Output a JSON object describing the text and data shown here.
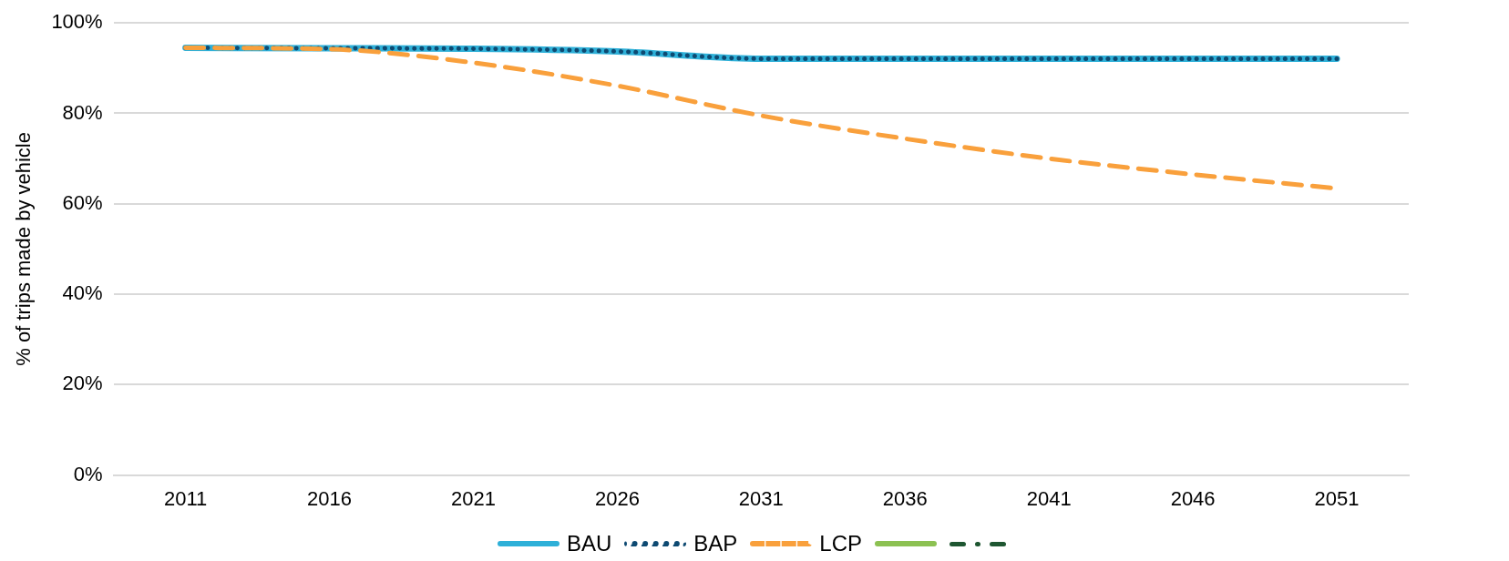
{
  "chart_data": {
    "type": "line",
    "ylabel": "% of trips made by vehicle",
    "categories": [
      "2011",
      "2016",
      "2021",
      "2026",
      "2031",
      "2036",
      "2041",
      "2046",
      "2051"
    ],
    "series": [
      {
        "name": "BAU",
        "color": "#2eb0d8",
        "line_style": "solid",
        "values": [
          94.5,
          94.4,
          94.3,
          93.7,
          92.1,
          92.1,
          92.1,
          92.1,
          92.1
        ]
      },
      {
        "name": "BAP",
        "color": "#0e4a72",
        "line_style": "dotted",
        "values": [
          94.5,
          94.4,
          94.3,
          93.7,
          92.1,
          92.1,
          92.1,
          92.1,
          92.1
        ]
      },
      {
        "name": "LCP",
        "color": "#f9a03c",
        "line_style": "dashed",
        "values": [
          94.5,
          94.2,
          91.2,
          86.1,
          79.5,
          74.4,
          70.0,
          66.5,
          63.4
        ]
      }
    ],
    "ylim": [
      0,
      100
    ],
    "yticks": [
      {
        "value": 0,
        "label": "0%"
      },
      {
        "value": 20,
        "label": "20%"
      },
      {
        "value": 40,
        "label": "40%"
      },
      {
        "value": 60,
        "label": "60%"
      },
      {
        "value": 80,
        "label": "80%"
      },
      {
        "value": 100,
        "label": "100%"
      }
    ],
    "grid": "y",
    "legend": "bottom",
    "marker": "none"
  }
}
